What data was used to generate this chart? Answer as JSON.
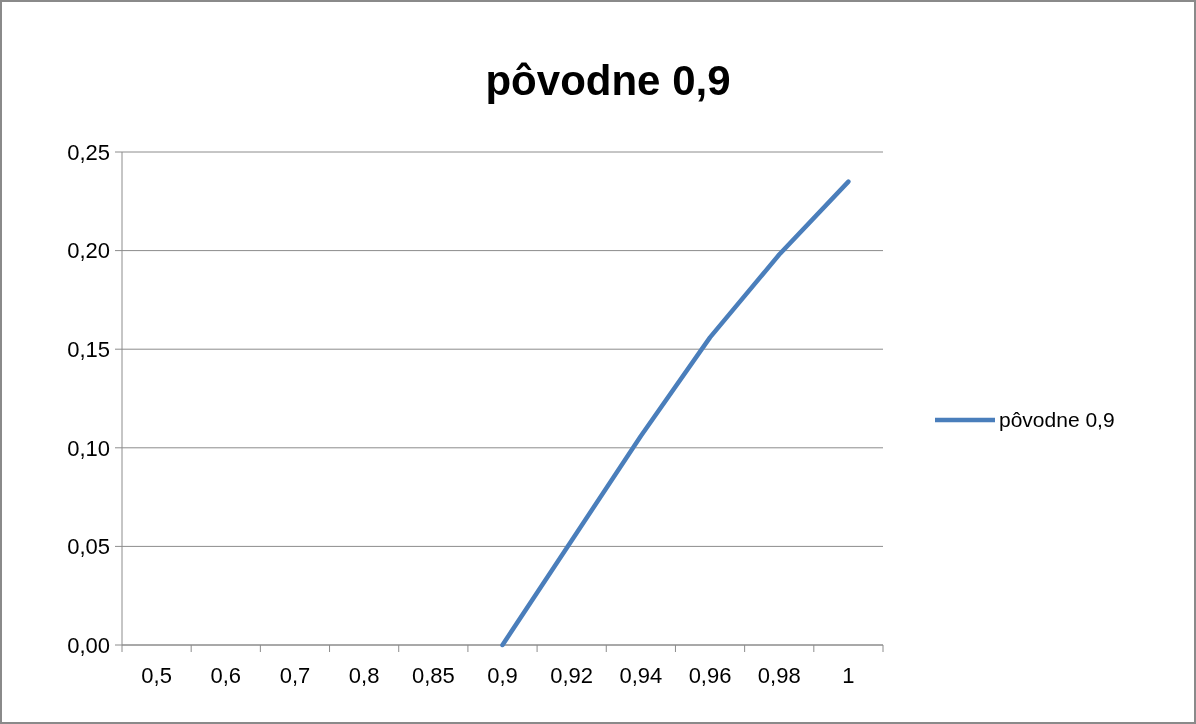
{
  "chart_data": {
    "type": "line",
    "title": "pôvodne 0,9",
    "categories": [
      "0,5",
      "0,6",
      "0,7",
      "0,8",
      "0,85",
      "0,9",
      "0,92",
      "0,94",
      "0,96",
      "0,98",
      "1"
    ],
    "series": [
      {
        "name": "pôvodne 0,9",
        "color": "#4a7ebb",
        "values": [
          null,
          null,
          null,
          null,
          null,
          0,
          0.053,
          0.106,
          0.156,
          0.198,
          0.235
        ]
      }
    ],
    "ylim": [
      0,
      0.25
    ],
    "yticks": [
      {
        "value": 0,
        "label": "0,00"
      },
      {
        "value": 0.05,
        "label": "0,05"
      },
      {
        "value": 0.1,
        "label": "0,10"
      },
      {
        "value": 0.15,
        "label": "0,15"
      },
      {
        "value": 0.2,
        "label": "0,20"
      },
      {
        "value": 0.25,
        "label": "0,25"
      }
    ],
    "grid": "y",
    "legend": "right",
    "marker": "none",
    "line_style": "solid"
  }
}
